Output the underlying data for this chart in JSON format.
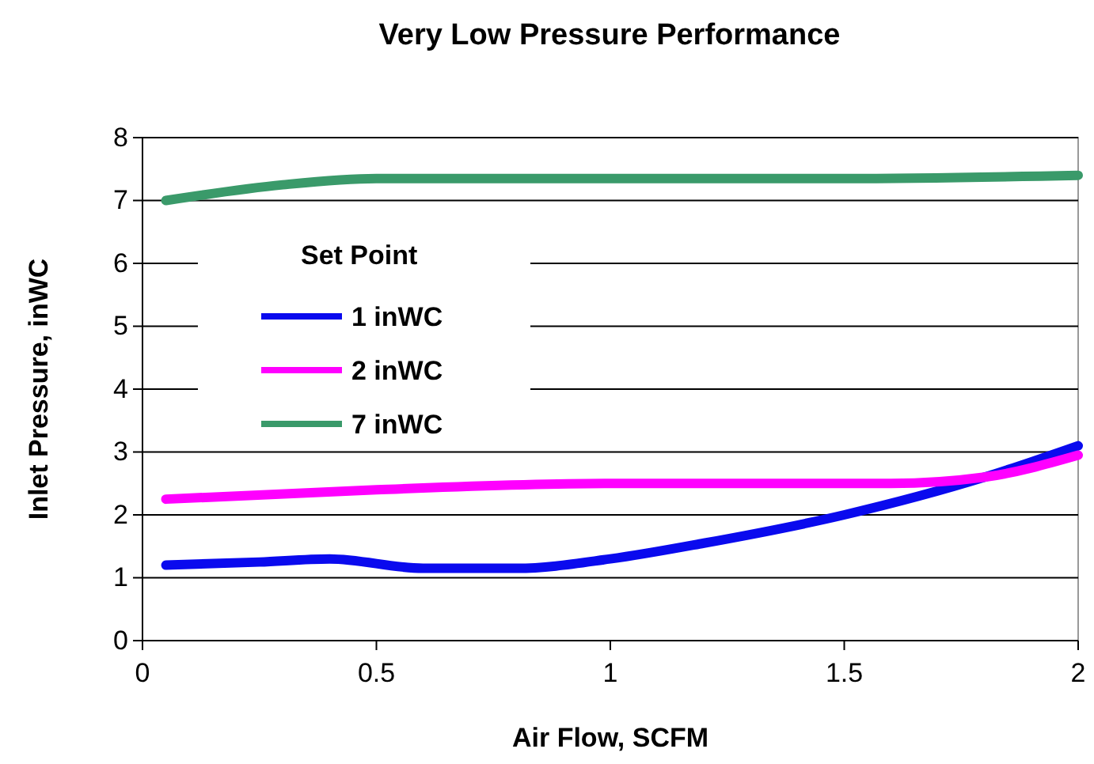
{
  "chart_data": {
    "type": "line",
    "title": "Very Low Pressure Performance",
    "xlabel": "Air Flow, SCFM",
    "ylabel": "Inlet Pressure, inWC",
    "legend_title": "Set Point",
    "legend": "left",
    "grid": "y",
    "line_style": "solid",
    "marker": "none",
    "xlim": [
      0,
      2
    ],
    "xticks": [
      0,
      0.5,
      1,
      1.5,
      2
    ],
    "ylim": [
      0,
      8
    ],
    "yticks": [
      0,
      1,
      2,
      3,
      4,
      5,
      6,
      7,
      8
    ],
    "series": [
      {
        "name": "1 inWC",
        "color": "#0a0aee",
        "x": [
          0.05,
          0.25,
          0.4,
          0.6,
          0.8,
          1.0,
          1.2,
          1.5,
          1.8,
          2.0
        ],
        "values": [
          1.2,
          1.25,
          1.3,
          1.15,
          1.15,
          1.3,
          1.55,
          2.0,
          2.6,
          3.1
        ]
      },
      {
        "name": "2 inWC",
        "color": "#ff00ff",
        "x": [
          0.05,
          0.5,
          1.0,
          1.3,
          1.6,
          1.8,
          2.0
        ],
        "values": [
          2.25,
          2.4,
          2.5,
          2.5,
          2.5,
          2.6,
          2.95
        ]
      },
      {
        "name": "7 inWC",
        "color": "#3a9a6a",
        "x": [
          0.05,
          0.3,
          0.5,
          1.0,
          1.5,
          2.0
        ],
        "values": [
          7.0,
          7.25,
          7.35,
          7.35,
          7.35,
          7.4
        ]
      }
    ]
  }
}
